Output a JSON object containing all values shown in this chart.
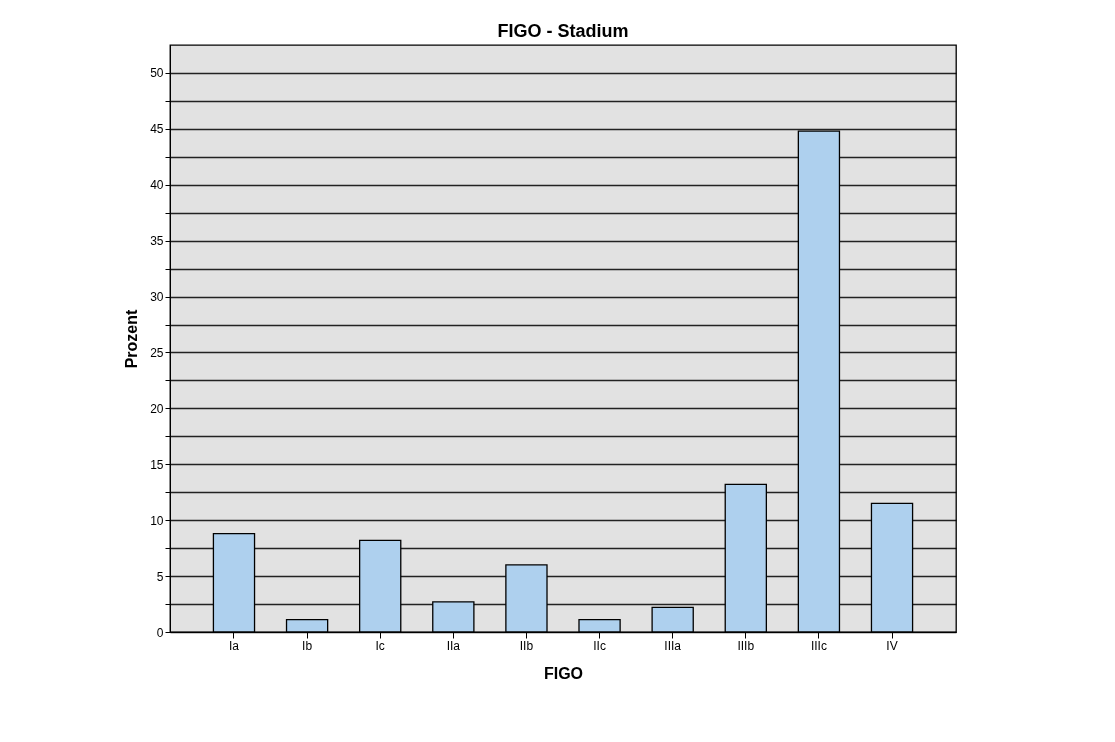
{
  "chart_data": {
    "type": "bar",
    "title": "FIGO - Stadium",
    "xlabel": "FIGO",
    "ylabel": "Prozent",
    "categories": [
      "Ia",
      "Ib",
      "Ic",
      "IIa",
      "IIb",
      "IIc",
      "IIIa",
      "IIIb",
      "IIIc",
      "IV"
    ],
    "values": [
      8.8,
      1.1,
      8.2,
      2.7,
      6.0,
      1.1,
      2.2,
      13.2,
      44.8,
      11.5
    ],
    "color": "#aed0ee",
    "ylim": [
      0,
      52.5
    ],
    "yticks": [
      0,
      {
        "value": 2.5,
        "label": null
      },
      5,
      {
        "value": 7.5,
        "label": null
      },
      10,
      {
        "value": 12.5,
        "label": null
      },
      15,
      {
        "value": 17.5,
        "label": null
      },
      20,
      {
        "value": 22.5,
        "label": null
      },
      25,
      {
        "value": 27.5,
        "label": null
      },
      30,
      {
        "value": 32.5,
        "label": null
      },
      35,
      {
        "value": 37.5,
        "label": null
      },
      40,
      {
        "value": 42.5,
        "label": null
      },
      45,
      {
        "value": 47.5,
        "label": null
      },
      50
    ],
    "grid": "y"
  }
}
